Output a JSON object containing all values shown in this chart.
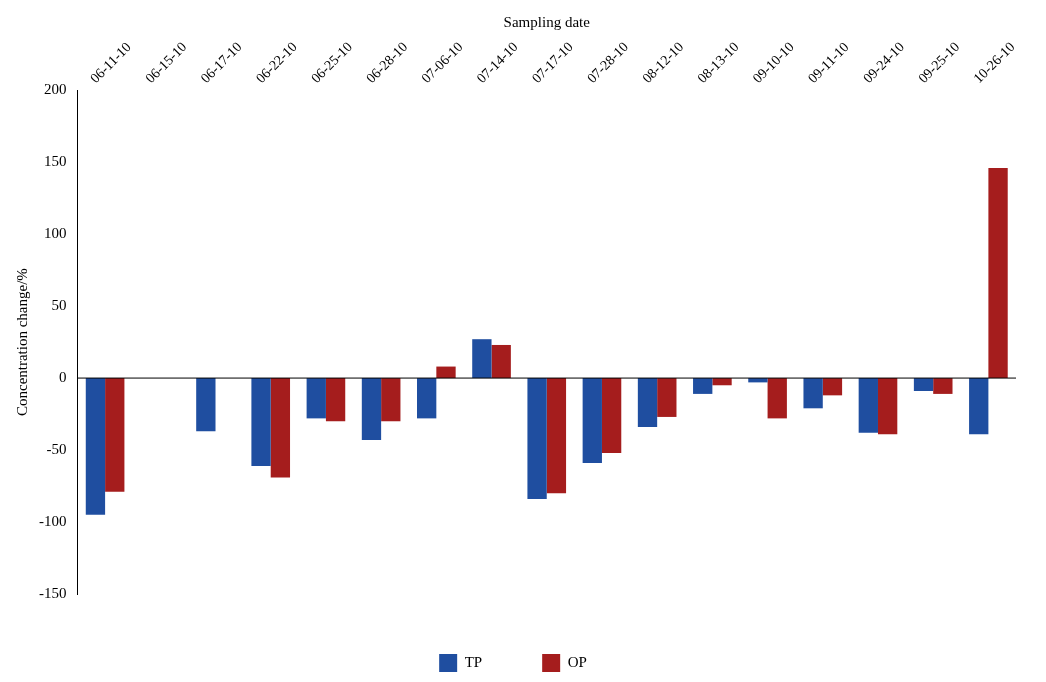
{
  "chart_data": {
    "type": "bar",
    "xlabel": "Sampling date",
    "ylabel": "Concentration change/%",
    "categories": [
      "06-11-10",
      "06-15-10",
      "06-17-10",
      "06-22-10",
      "06-25-10",
      "06-28-10",
      "07-06-10",
      "07-14-10",
      "07-17-10",
      "07-28-10",
      "08-12-10",
      "08-13-10",
      "09-10-10",
      "09-11-10",
      "09-24-10",
      "09-25-10",
      "10-26-10"
    ],
    "series": [
      {
        "name": "TP",
        "color": "#1f4ea0",
        "values": [
          -95,
          null,
          -37,
          -61,
          -28,
          -43,
          -28,
          27,
          -84,
          -59,
          -34,
          -11,
          -3,
          -21,
          -38,
          -9,
          -39
        ]
      },
      {
        "name": "OP",
        "color": "#a51d1d",
        "values": [
          -79,
          null,
          null,
          -69,
          -30,
          -30,
          8,
          23,
          -80,
          -52,
          -27,
          -5,
          -28,
          -12,
          -39,
          -11,
          146
        ]
      }
    ],
    "ref_lines": [
      {
        "axis": "y",
        "value": 0,
        "color": "#000000"
      }
    ],
    "ylim": [
      -150,
      200
    ],
    "yticks": [
      -150,
      -100,
      -50,
      0,
      50,
      100,
      150,
      200
    ],
    "grid": false,
    "legend": "bottom"
  }
}
